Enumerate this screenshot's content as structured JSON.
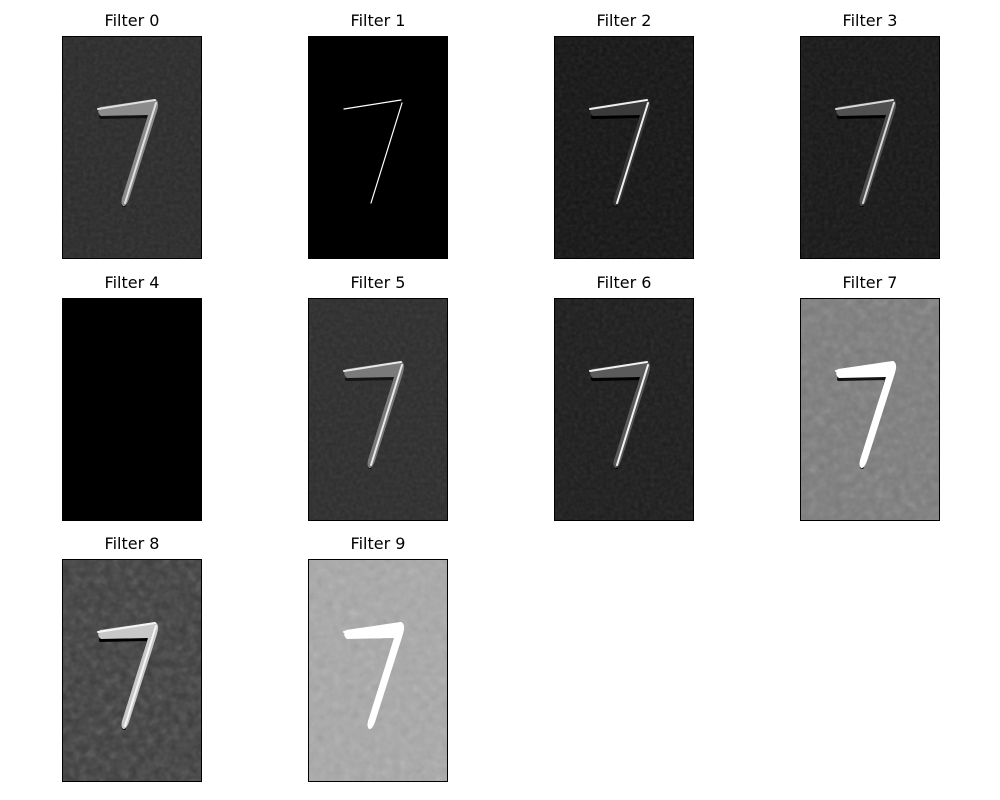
{
  "figure": {
    "panels": [
      {
        "title": "Filter 0",
        "style": {
          "bg": "#2a2a2a",
          "stroke": "#8c8c8c",
          "edge": "#e0e0e0",
          "shadow": "#111111",
          "noise": "soft"
        }
      },
      {
        "title": "Filter 1",
        "style": {
          "bg": "#000000",
          "stroke": "none",
          "edge": "#ffffff",
          "shadow": "none",
          "noise": "none"
        }
      },
      {
        "title": "Filter 2",
        "style": {
          "bg": "#141414",
          "stroke": "#3a3a3a",
          "edge": "#f0f0f0",
          "shadow": "#000000",
          "noise": "soft"
        }
      },
      {
        "title": "Filter 3",
        "style": {
          "bg": "#161616",
          "stroke": "#505050",
          "edge": "#d8d8d8",
          "shadow": "#000000",
          "noise": "soft"
        }
      },
      {
        "title": "Filter 4",
        "style": {
          "bg": "#000000",
          "stroke": "none",
          "edge": "none",
          "shadow": "none",
          "noise": "none"
        }
      },
      {
        "title": "Filter 5",
        "style": {
          "bg": "#2c2c2c",
          "stroke": "#7a7a7a",
          "edge": "#e8e8e8",
          "shadow": "#151515",
          "noise": "soft"
        }
      },
      {
        "title": "Filter 6",
        "style": {
          "bg": "#1c1c1c",
          "stroke": "#5a5a5a",
          "edge": "#f2f2f2",
          "shadow": "#000000",
          "noise": "soft"
        }
      },
      {
        "title": "Filter 7",
        "style": {
          "bg": "#7a7a7a",
          "stroke": "#ffffff",
          "edge": "#ffffff",
          "shadow": "#111111",
          "noise": "strong"
        }
      },
      {
        "title": "Filter 8",
        "style": {
          "bg": "#3a3a3a",
          "stroke": "#c8c8c8",
          "edge": "#f5f5f5",
          "shadow": "#000000",
          "noise": "strong"
        }
      },
      {
        "title": "Filter 9",
        "style": {
          "bg": "#a8a8a8",
          "stroke": "#ffffff",
          "edge": "#ffffff",
          "shadow": "none",
          "noise": "strong"
        }
      }
    ]
  }
}
